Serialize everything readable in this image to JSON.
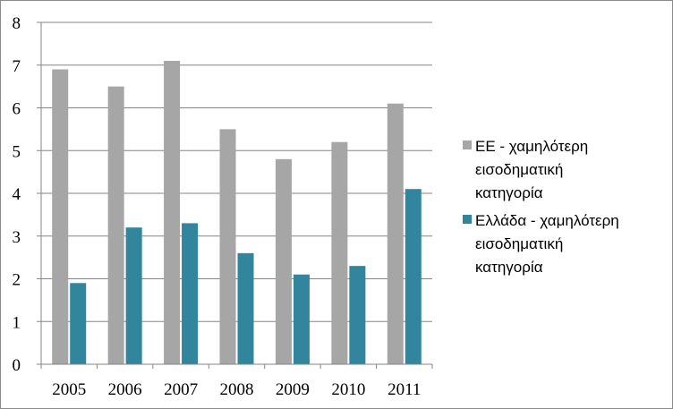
{
  "chart_data": {
    "type": "bar",
    "title": "",
    "xlabel": "",
    "ylabel": "",
    "ylim": [
      0,
      8
    ],
    "yticks": [
      0,
      1,
      2,
      3,
      4,
      5,
      6,
      7,
      8
    ],
    "grid": true,
    "legend_position": "right",
    "categories": [
      "2005",
      "2006",
      "2007",
      "2008",
      "2009",
      "2010",
      "2011"
    ],
    "series": [
      {
        "name": "ΕΕ - χαμηλότερη εισοδηματική κατηγορία",
        "legend_lines": [
          "ΕΕ - χαμηλότερη",
          "εισοδηματική",
          "κατηγορία"
        ],
        "color": "#a6a6a6",
        "values": [
          6.9,
          6.5,
          7.1,
          5.5,
          4.8,
          5.2,
          6.1
        ]
      },
      {
        "name": "Ελλάδα - χαμηλότερη εισοδηματική κατηγορία",
        "legend_lines": [
          "Ελλάδα - χαμηλότερη",
          "εισοδηματική",
          "κατηγορία"
        ],
        "color": "#31859c",
        "values": [
          1.9,
          3.2,
          3.3,
          2.6,
          2.1,
          2.3,
          4.1
        ]
      }
    ]
  }
}
